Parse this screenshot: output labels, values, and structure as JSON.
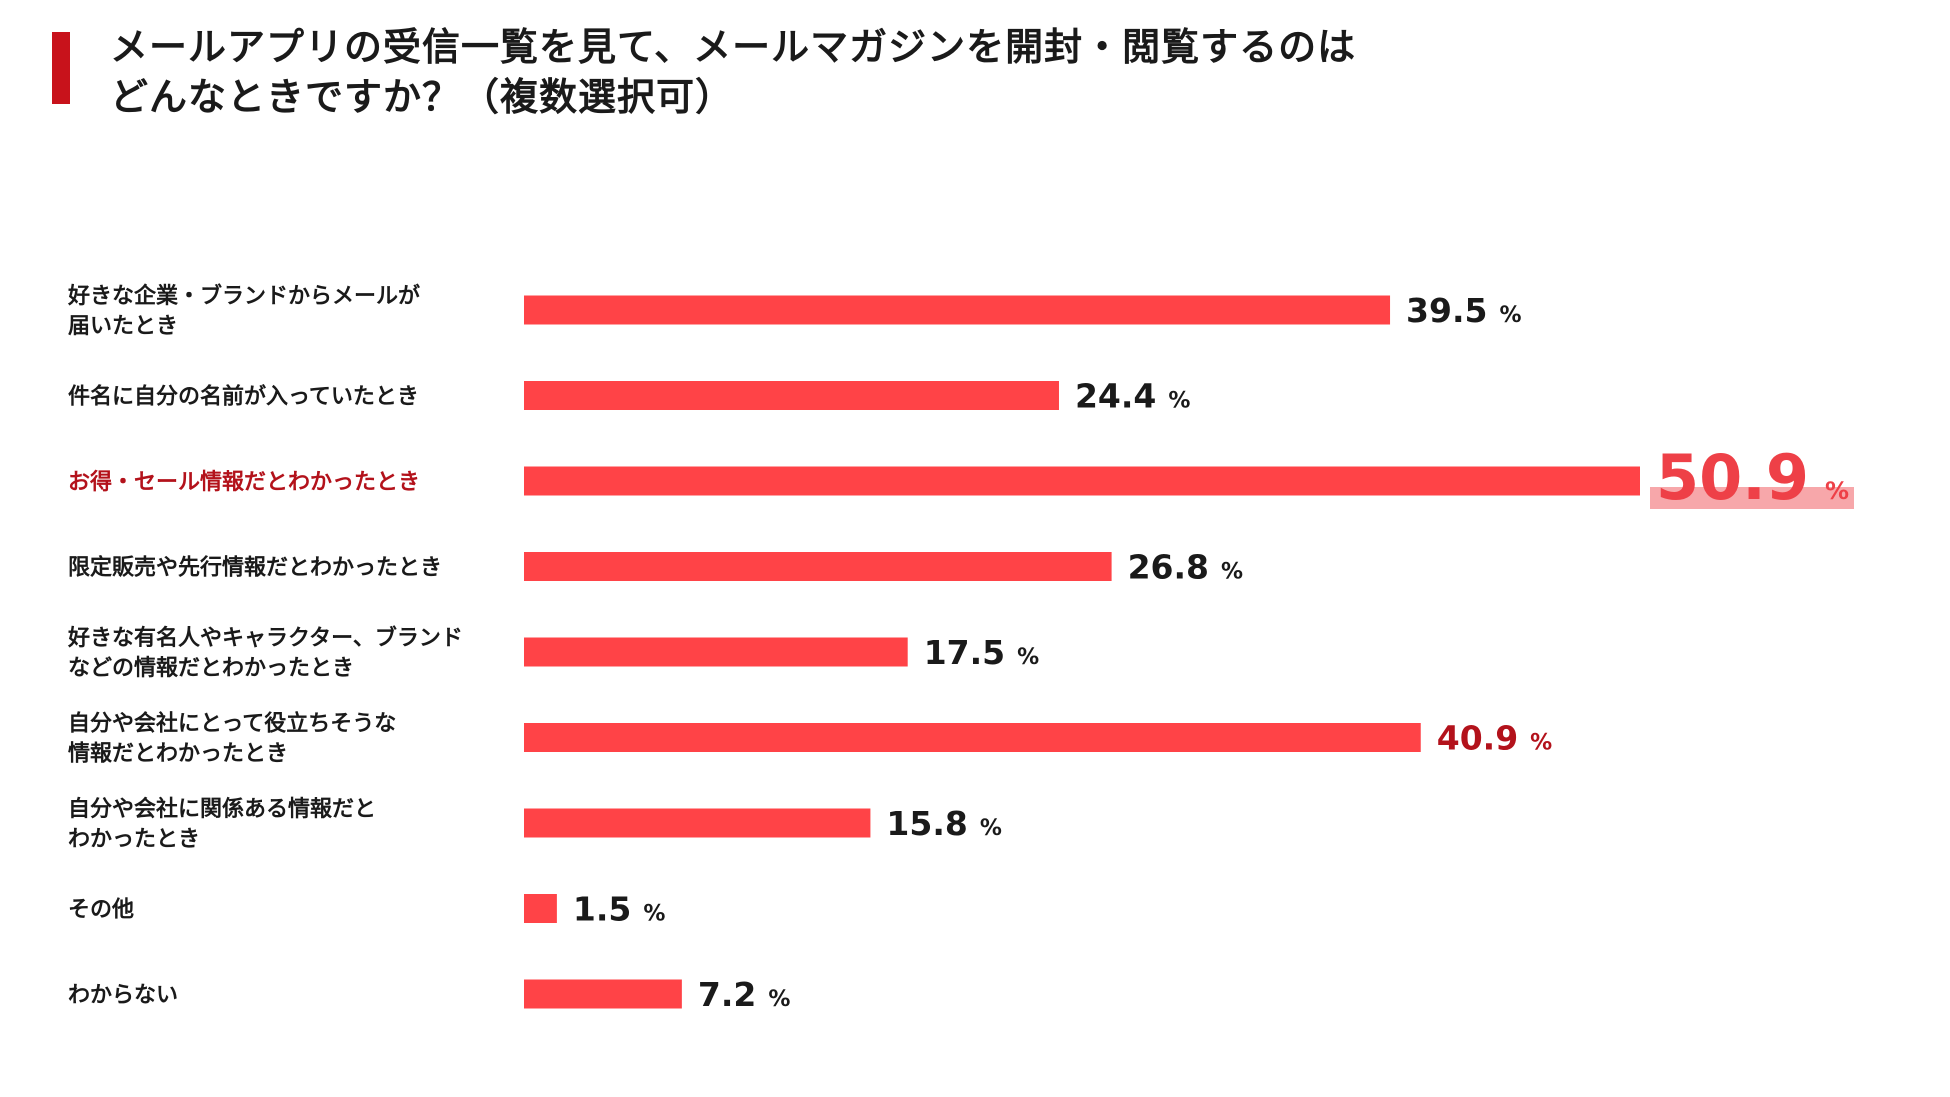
{
  "title": {
    "line1": "メールアプリの受信一覧を見て、メールマガジンを開封・閲覧するのは",
    "line2": "どんなときですか？（複数選択可）"
  },
  "colors": {
    "bar": "#ff4347",
    "accent": "#c8121b",
    "highlight_text": "#b3121b",
    "highlight_band": "#f7a7aa"
  },
  "chart_data": {
    "type": "bar",
    "orientation": "horizontal",
    "title": "メールアプリの受信一覧を見て、メールマガジンを開封・閲覧するのはどんなときですか？（複数選択可）",
    "unit": "%",
    "xlim": [
      0,
      50.9
    ],
    "categories": [
      [
        "好きな企業・ブランドからメールが",
        "届いたとき"
      ],
      [
        "件名に自分の名前が入っていたとき"
      ],
      [
        "お得・セール情報だとわかったとき"
      ],
      [
        "限定販売や先行情報だとわかったとき"
      ],
      [
        "好きな有名人やキャラクター、ブランド",
        "などの情報だとわかったとき"
      ],
      [
        "自分や会社にとって役立ちそうな",
        "情報だとわかったとき"
      ],
      [
        "自分や会社に関係ある情報だと",
        "わかったとき"
      ],
      [
        "その他"
      ],
      [
        "わからない"
      ]
    ],
    "values": [
      39.5,
      24.4,
      50.9,
      26.8,
      17.5,
      40.9,
      15.8,
      1.5,
      7.2
    ],
    "highlight": [
      "normal",
      "normal",
      "top1",
      "normal",
      "normal",
      "top2",
      "normal",
      "normal",
      "normal"
    ]
  }
}
